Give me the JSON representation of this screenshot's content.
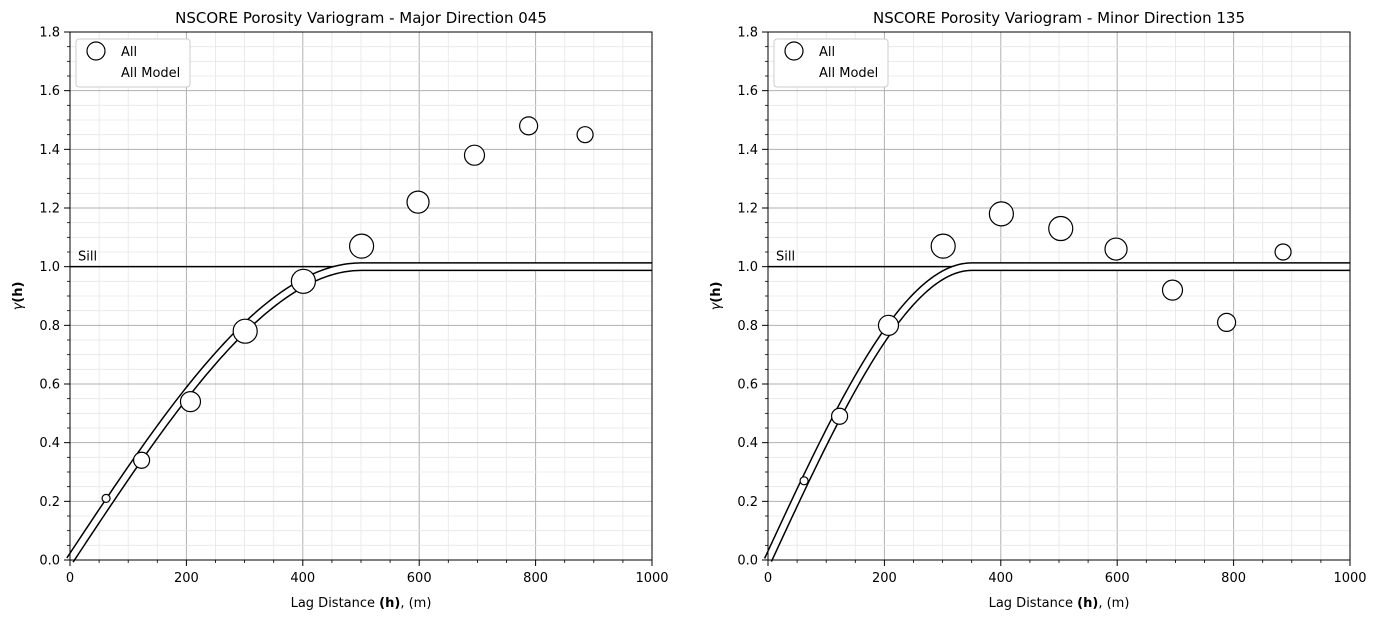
{
  "chart_data": [
    {
      "type": "scatter",
      "title": "NSCORE Porosity Variogram - Major Direction 045",
      "xlabel_prefix": "Lag Distance ",
      "xlabel_bold": "(h)",
      "xlabel_suffix": ", (m)",
      "ylabel_prefix": "γ",
      "ylabel_bold": "(h)",
      "xlim": [
        0,
        1000
      ],
      "ylim": [
        0,
        1.8
      ],
      "xticks": [
        0,
        200,
        400,
        600,
        800,
        1000
      ],
      "yticks": [
        0.0,
        0.2,
        0.4,
        0.6,
        0.8,
        1.0,
        1.2,
        1.4,
        1.6,
        1.8
      ],
      "xtick_labels": [
        "0",
        "200",
        "400",
        "600",
        "800",
        "1000"
      ],
      "ytick_labels": [
        "0.0",
        "0.2",
        "0.4",
        "0.6",
        "0.8",
        "1.0",
        "1.2",
        "1.4",
        "1.6",
        "1.8"
      ],
      "grid": true,
      "legend_position": "top-left",
      "legend": [
        "All",
        "All Model"
      ],
      "sill": {
        "value": 1.0,
        "label": "Sill"
      },
      "model": {
        "range": 500,
        "sill": 1.0,
        "nugget": 0.0,
        "shape": "gaussian-like"
      },
      "series": [
        {
          "name": "All",
          "points": [
            {
              "x": 62,
              "y": 0.21,
              "size": 4
            },
            {
              "x": 123,
              "y": 0.34,
              "size": 8
            },
            {
              "x": 207,
              "y": 0.54,
              "size": 10
            },
            {
              "x": 301,
              "y": 0.78,
              "size": 12
            },
            {
              "x": 401,
              "y": 0.95,
              "size": 12
            },
            {
              "x": 501,
              "y": 1.07,
              "size": 12
            },
            {
              "x": 598,
              "y": 1.22,
              "size": 11
            },
            {
              "x": 695,
              "y": 1.38,
              "size": 10
            },
            {
              "x": 788,
              "y": 1.48,
              "size": 9
            },
            {
              "x": 885,
              "y": 1.45,
              "size": 8
            }
          ]
        }
      ]
    },
    {
      "type": "scatter",
      "title": "NSCORE Porosity Variogram - Minor Direction 135",
      "xlabel_prefix": "Lag Distance ",
      "xlabel_bold": "(h)",
      "xlabel_suffix": ", (m)",
      "ylabel_prefix": "γ",
      "ylabel_bold": "(h)",
      "xlim": [
        0,
        1000
      ],
      "ylim": [
        0,
        1.8
      ],
      "xticks": [
        0,
        200,
        400,
        600,
        800,
        1000
      ],
      "yticks": [
        0.0,
        0.2,
        0.4,
        0.6,
        0.8,
        1.0,
        1.2,
        1.4,
        1.6,
        1.8
      ],
      "xtick_labels": [
        "0",
        "200",
        "400",
        "600",
        "800",
        "1000"
      ],
      "ytick_labels": [
        "0.0",
        "0.2",
        "0.4",
        "0.6",
        "0.8",
        "1.0",
        "1.2",
        "1.4",
        "1.6",
        "1.8"
      ],
      "grid": true,
      "legend_position": "top-left",
      "legend": [
        "All",
        "All Model"
      ],
      "sill": {
        "value": 1.0,
        "label": "Sill"
      },
      "model": {
        "range": 350,
        "sill": 1.0,
        "nugget": 0.0,
        "shape": "gaussian-like"
      },
      "series": [
        {
          "name": "All",
          "points": [
            {
              "x": 62,
              "y": 0.27,
              "size": 4
            },
            {
              "x": 123,
              "y": 0.49,
              "size": 8
            },
            {
              "x": 207,
              "y": 0.8,
              "size": 10
            },
            {
              "x": 301,
              "y": 1.07,
              "size": 12
            },
            {
              "x": 401,
              "y": 1.18,
              "size": 12
            },
            {
              "x": 503,
              "y": 1.13,
              "size": 12
            },
            {
              "x": 598,
              "y": 1.06,
              "size": 11
            },
            {
              "x": 695,
              "y": 0.92,
              "size": 10
            },
            {
              "x": 788,
              "y": 0.81,
              "size": 9
            },
            {
              "x": 885,
              "y": 1.05,
              "size": 8
            }
          ]
        }
      ]
    }
  ]
}
